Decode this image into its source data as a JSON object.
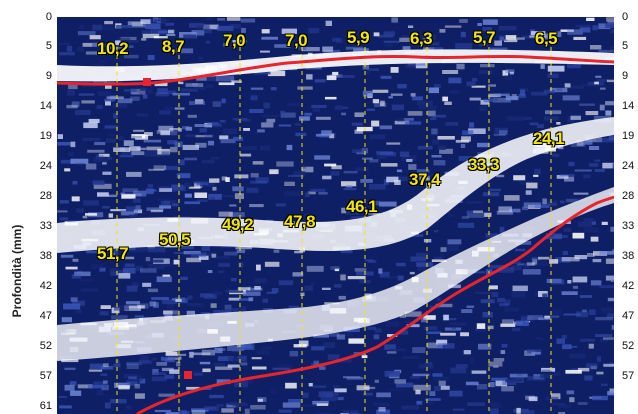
{
  "axis": {
    "ylabel": "Profondità (mm)",
    "left_ticks": [
      "0",
      "5",
      "9",
      "14",
      "19",
      "24",
      "28",
      "33",
      "38",
      "42",
      "47",
      "52",
      "57",
      "61"
    ],
    "right_ticks": [
      "0",
      "5",
      "9",
      "14",
      "19",
      "24",
      "28",
      "33",
      "38",
      "42",
      "47",
      "52",
      "57"
    ]
  },
  "measurements": [
    "10,2",
    "8,7",
    "7,0",
    "7,0",
    "5,9",
    "6,3",
    "5,7",
    "6,5",
    "51,7",
    "50,5",
    "49,2",
    "47,8",
    "46,1",
    "37,4",
    "33,3",
    "24,1"
  ],
  "colors": {
    "tissue_dark": "#0f1f66",
    "tissue_bright": "#ffffff",
    "boundary_line": "#e8242c",
    "scan_line": "#f3e600",
    "label_text": "#f3e600"
  }
}
